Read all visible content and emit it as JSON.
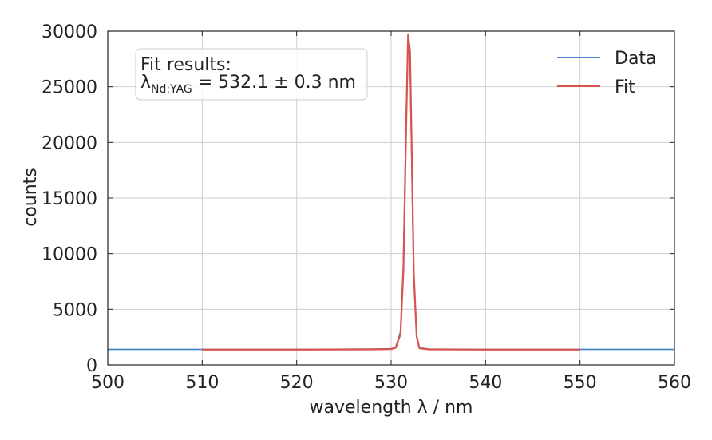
{
  "chart_data": {
    "type": "line",
    "title": "",
    "xlabel": "wavelength λ / nm",
    "ylabel": "counts",
    "xlim": [
      500,
      560
    ],
    "ylim": [
      0,
      30000
    ],
    "x_ticks": [
      500,
      510,
      520,
      530,
      540,
      550,
      560
    ],
    "y_ticks": [
      0,
      5000,
      10000,
      15000,
      20000,
      25000,
      30000
    ],
    "grid": true,
    "legend_position": "top-right",
    "series": [
      {
        "name": "Data",
        "color": "#4a86c8",
        "x": [
          500,
          510,
          520,
          528,
          530,
          530.5,
          531,
          531.3,
          531.6,
          531.8,
          532.0,
          532.2,
          532.4,
          532.7,
          533,
          534,
          540,
          550,
          560
        ],
        "y": [
          1400,
          1400,
          1400,
          1420,
          1450,
          1600,
          3000,
          9000,
          22000,
          29500,
          28000,
          18000,
          8000,
          2500,
          1550,
          1420,
          1400,
          1400,
          1400
        ]
      },
      {
        "name": "Fit",
        "color": "#d9534f",
        "x": [
          510,
          520,
          528,
          530,
          530.5,
          531,
          531.3,
          531.6,
          531.8,
          532.0,
          532.2,
          532.4,
          532.7,
          533,
          534,
          540,
          550
        ],
        "y": [
          1380,
          1380,
          1400,
          1430,
          1550,
          2800,
          8500,
          21500,
          29700,
          28200,
          18500,
          8200,
          2600,
          1500,
          1400,
          1380,
          1380
        ]
      }
    ],
    "annotation": {
      "line1": "Fit results:",
      "symbol": "λ",
      "subscript": "Nd:YAG",
      "value": " = 532.1 ± 0.3 nm"
    }
  }
}
